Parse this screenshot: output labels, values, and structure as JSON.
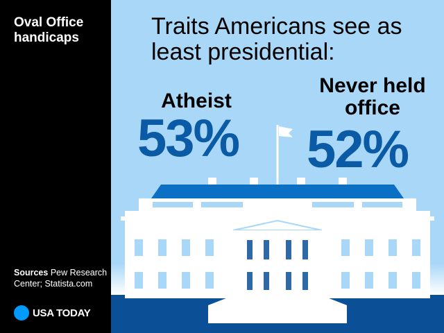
{
  "sidebar": {
    "title": "Oval Office handicaps",
    "sources_label": "Sources",
    "sources_text": "Pew Research Center; Statista.com",
    "brand": "USA TODAY"
  },
  "colors": {
    "sidebar_bg": "#000000",
    "sky": "#a9d7f7",
    "value_blue": "#0b5aa6",
    "roof_blue": "#0b6fc4",
    "brand_dot": "#009bff"
  },
  "chart_data": {
    "type": "table",
    "title": "Traits Americans see as least presidential:",
    "items": [
      {
        "label": "Atheist",
        "value": 53,
        "display": "53%"
      },
      {
        "label": "Never held office",
        "value": 52,
        "display": "52%"
      }
    ]
  }
}
